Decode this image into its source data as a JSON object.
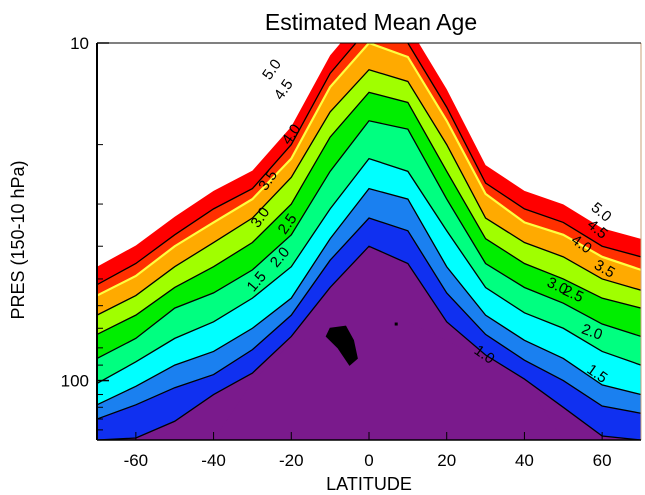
{
  "chart_data": {
    "type": "contour",
    "title": "Estimated Mean Age",
    "xlabel": "LATITUDE",
    "ylabel": "PRES (150-10 hPa)",
    "xlim": [
      -70,
      70
    ],
    "ylim": [
      150,
      10
    ],
    "yscale": "log",
    "x_ticks": [
      -60,
      -40,
      -20,
      0,
      20,
      40,
      60
    ],
    "x_tick_labels": [
      "-60",
      "-40",
      "-20",
      "0",
      "20",
      "40",
      "60"
    ],
    "y_major_ticks": [
      10,
      100
    ],
    "y_major_tick_labels": [
      "10",
      "100"
    ],
    "y_minor_ticks": [
      20,
      30,
      40,
      50,
      60,
      70,
      80,
      90,
      110,
      120,
      130,
      140
    ],
    "grid": false,
    "legend": "none",
    "latitudes": [
      -70,
      -60,
      -50,
      -40,
      -30,
      -20,
      -10,
      0,
      10,
      20,
      30,
      40,
      50,
      60,
      70
    ],
    "levels": [
      {
        "value": 0.5,
        "color": "#7a1a8c",
        "boundary_pressure_hPa": [
          150,
          150,
          150,
          150,
          101,
          77,
          73,
          70,
          67,
          76,
          87,
          100,
          150,
          150,
          150
        ]
      },
      {
        "value": 1.0,
        "color": "#1030f0",
        "boundary_pressure_hPa": [
          150,
          148,
          132,
          110,
          95,
          74,
          53,
          40,
          45,
          67,
          84,
          99,
          120,
          146,
          150
        ]
      },
      {
        "value": 1.5,
        "color": "#1a80f0",
        "boundary_pressure_hPa": [
          130,
          118,
          105,
          96,
          81,
          64,
          44,
          33,
          36,
          55,
          73,
          87,
          100,
          119,
          125
        ]
      },
      {
        "value": 2.0,
        "color": "#00ffff",
        "boundary_pressure_hPa": [
          118,
          104,
          90,
          82,
          70,
          57,
          38,
          27,
          29,
          46,
          64,
          76,
          86,
          103,
          110
        ]
      },
      {
        "value": 2.5,
        "color": "#00ff80",
        "boundary_pressure_hPa": [
          102,
          88,
          75,
          67,
          57,
          46,
          31,
          22,
          24,
          36,
          53,
          63,
          70,
          82,
          90
        ]
      },
      {
        "value": 3.0,
        "color": "#00ee00",
        "boundary_pressure_hPa": [
          86,
          75,
          61,
          55,
          47,
          37,
          24,
          17,
          18,
          29,
          45,
          53,
          59,
          68,
          74
        ]
      },
      {
        "value": 3.5,
        "color": "#a0ff00",
        "boundary_pressure_hPa": [
          73,
          64,
          53,
          46,
          39,
          30,
          19,
          14,
          15,
          24,
          38,
          45,
          50,
          57,
          61
        ]
      },
      {
        "value": 4.0,
        "color": "#ffaa00",
        "boundary_pressure_hPa": [
          64,
          56,
          46,
          39,
          33,
          25,
          16,
          12,
          13,
          20,
          33,
          39,
          43,
          50,
          54
        ]
      },
      {
        "value": 4.5,
        "color": "#ff3000",
        "boundary_pressure_hPa": [
          56,
          49,
          40,
          34,
          29,
          22,
          13.5,
          10,
          11,
          17,
          28,
          34,
          37,
          43,
          47
        ]
      },
      {
        "value": 5.0,
        "color": "#ff0000",
        "boundary_pressure_hPa": [
          52,
          45,
          37,
          31,
          27,
          20,
          12.3,
          9,
          10,
          15.5,
          26,
          31,
          34,
          40,
          43
        ]
      }
    ],
    "highlight_contour": {
      "value": 4.5,
      "color": "#ffff40"
    },
    "inner_feature_color": "#000000",
    "contour_labels": [
      {
        "text": "5.0",
        "lat": -24,
        "p": 12.2,
        "angle": -55
      },
      {
        "text": "4.5",
        "lat": -21,
        "p": 14,
        "angle": -55
      },
      {
        "text": "4.0",
        "lat": -19,
        "p": 19,
        "angle": -55
      },
      {
        "text": "3.5",
        "lat": -25,
        "p": 26,
        "angle": -55
      },
      {
        "text": "3.0",
        "lat": -27,
        "p": 33.5,
        "angle": -55
      },
      {
        "text": "2.5",
        "lat": -20,
        "p": 35,
        "angle": -55
      },
      {
        "text": "2.0",
        "lat": -22,
        "p": 44,
        "angle": -50
      },
      {
        "text": "1.5",
        "lat": -28,
        "p": 52,
        "angle": -50
      },
      {
        "text": "1.0",
        "lat": 29,
        "p": 86,
        "angle": 35
      },
      {
        "text": "5.0",
        "lat": 59,
        "p": 32.5,
        "angle": 40
      },
      {
        "text": "4.5",
        "lat": 58,
        "p": 36.5,
        "angle": 40
      },
      {
        "text": "4.0",
        "lat": 54,
        "p": 40.5,
        "angle": 35
      },
      {
        "text": "3.5",
        "lat": 60,
        "p": 48,
        "angle": 30
      },
      {
        "text": "3.0",
        "lat": 48,
        "p": 54,
        "angle": 25
      },
      {
        "text": "2.5",
        "lat": 52,
        "p": 57,
        "angle": 25
      },
      {
        "text": "2.0",
        "lat": 57,
        "p": 74,
        "angle": 20
      },
      {
        "text": "1.5",
        "lat": 58,
        "p": 98,
        "angle": 35
      }
    ]
  }
}
